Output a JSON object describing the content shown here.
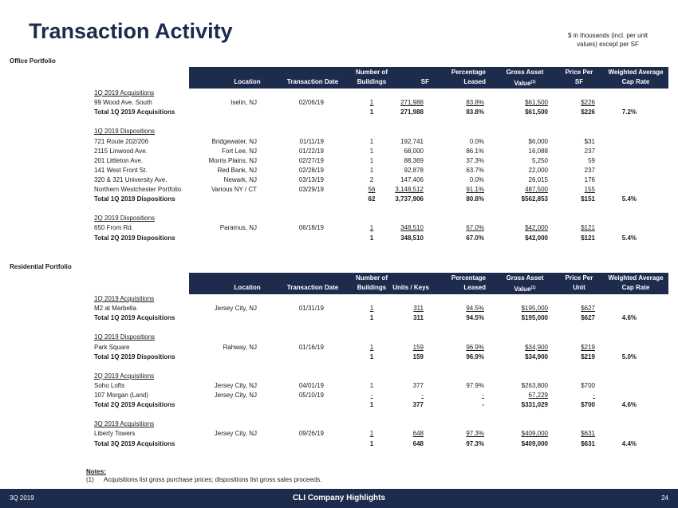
{
  "header": {
    "title": "Transaction Activity",
    "note_lines": [
      "$ in thousands (incl. per unit",
      "values) except per SF"
    ]
  },
  "sections": [
    {
      "title": "Office Portfolio",
      "columns": [
        {
          "lines": [
            "Location"
          ]
        },
        {
          "lines": [
            "Transaction Date"
          ]
        },
        {
          "lines": [
            "Number of",
            "Buildings"
          ]
        },
        {
          "lines": [
            "SF"
          ]
        },
        {
          "lines": [
            "Percentage",
            "Leased"
          ]
        },
        {
          "lines": [
            "Gross Asset",
            "Value"
          ],
          "sup": "(1)"
        },
        {
          "lines": [
            "Price Per",
            "SF"
          ]
        },
        {
          "lines": [
            "Weighted Average",
            "Cap Rate"
          ]
        }
      ],
      "groups": [
        {
          "label": "1Q 2019 Acquisitions",
          "rows": [
            [
              "99 Wood Ave. South",
              "Iselin, NJ",
              "02/06/19",
              "1",
              "271,988",
              "83.8%",
              "$61,500",
              "$226"
            ]
          ],
          "total": [
            "Total 1Q 2019 Acquisitions",
            "1",
            "271,988",
            "83.8%",
            "$61,500",
            "$226",
            "7.2%"
          ]
        },
        {
          "label": "1Q 2019 Dispositions",
          "rows": [
            [
              "721 Route 202/206",
              "Bridgewater, NJ",
              "01/11/19",
              "1",
              "192,741",
              "0.0%",
              "$6,000",
              "$31"
            ],
            [
              "2115 Linwood Ave.",
              "Fort Lee, NJ",
              "01/22/19",
              "1",
              "68,000",
              "86.1%",
              "16,088",
              "237"
            ],
            [
              "201 Littleton Ave.",
              "Morris Plains, NJ",
              "02/27/19",
              "1",
              "88,369",
              "37.3%",
              "5,250",
              "59"
            ],
            [
              "141 West Front St.",
              "Red Bank, NJ",
              "02/28/19",
              "1",
              "92,878",
              "63.7%",
              "22,000",
              "237"
            ],
            [
              "320 & 321 University Ave.",
              "Newark, NJ",
              "03/13/19",
              "2",
              "147,406",
              "0.0%",
              "26,015",
              "176"
            ],
            [
              "Northern Westchester Portfolio",
              "Various NY / CT",
              "03/29/19",
              "56",
              "3,148,512",
              "91.1%",
              "487,500",
              "155"
            ]
          ],
          "total": [
            "Total 1Q 2019 Dispositions",
            "62",
            "3,737,906",
            "80.8%",
            "$562,853",
            "$151",
            "5.4%"
          ]
        },
        {
          "label": "2Q 2019 Dispositions",
          "rows": [
            [
              "650 From Rd.",
              "Paramus, NJ",
              "06/18/19",
              "1",
              "348,510",
              "67.0%",
              "$42,000",
              "$121"
            ]
          ],
          "total": [
            "Total 2Q 2019 Dispositions",
            "1",
            "348,510",
            "67.0%",
            "$42,000",
            "$121",
            "5.4%"
          ]
        }
      ]
    },
    {
      "title": "Residential Portfolio",
      "columns": [
        {
          "lines": [
            "Location"
          ]
        },
        {
          "lines": [
            "Transaction Date"
          ]
        },
        {
          "lines": [
            "Number of",
            "Buildings"
          ]
        },
        {
          "lines": [
            "Units / Keys"
          ]
        },
        {
          "lines": [
            "Percentage",
            "Leased"
          ]
        },
        {
          "lines": [
            "Gross Asset",
            "Value"
          ],
          "sup": "(1)"
        },
        {
          "lines": [
            "Price Per",
            "Unit"
          ]
        },
        {
          "lines": [
            "Weighted Average",
            "Cap Rate"
          ]
        }
      ],
      "groups": [
        {
          "label": "1Q 2019 Acquisitions",
          "rows": [
            [
              "M2 at Marbella",
              "Jersey City, NJ",
              "01/31/19",
              "1",
              "311",
              "94.5%",
              "$195,000",
              "$627"
            ]
          ],
          "total": [
            "Total 1Q 2019 Acquisitions",
            "1",
            "311",
            "94.5%",
            "$195,000",
            "$627",
            "4.6%"
          ]
        },
        {
          "label": "1Q 2019 Dispositions",
          "rows": [
            [
              "Park Square",
              "Rahway, NJ",
              "01/16/19",
              "1",
              "159",
              "96.9%",
              "$34,900",
              "$219"
            ]
          ],
          "total": [
            "Total 1Q 2019 Dispositions",
            "1",
            "159",
            "96.9%",
            "$34,900",
            "$219",
            "5.0%"
          ]
        },
        {
          "label": "2Q 2019 Acquisitions",
          "rows": [
            [
              "Soho Lofts",
              "Jersey City, NJ",
              "04/01/19",
              "1",
              "377",
              "97.9%",
              "$263,800",
              "$700"
            ],
            [
              "107 Morgan (Land)",
              "Jersey City, NJ",
              "05/10/19",
              "-",
              "-",
              "-",
              "67,229",
              "-"
            ]
          ],
          "total": [
            "Total 2Q 2019 Acquisitions",
            "1",
            "377",
            "-",
            "$331,029",
            "$700",
            "4.6%"
          ]
        },
        {
          "label": "3Q 2019 Acquisitions",
          "rows": [
            [
              "Liberty Towers",
              "Jersey City, NJ",
              "09/26/19",
              "1",
              "648",
              "97.3%",
              "$409,000",
              "$631"
            ]
          ],
          "total": [
            "Total 3Q 2019 Acquisitions",
            "1",
            "648",
            "97.3%",
            "$409,000",
            "$631",
            "4.4%"
          ]
        }
      ]
    }
  ],
  "notes": {
    "heading": "Notes:",
    "items": [
      {
        "marker": "(1)",
        "text": "Acquisitions list gross purchase prices; dispositions list gross sales proceeds."
      }
    ]
  },
  "footer": {
    "left": "3Q 2019",
    "center": "CLI Company Highlights",
    "page": "24"
  }
}
